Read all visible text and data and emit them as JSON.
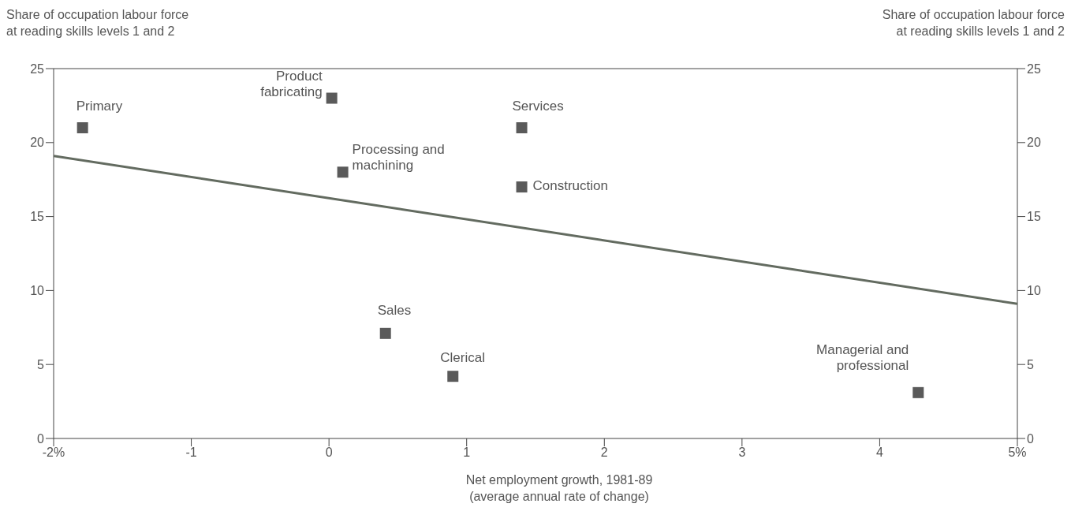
{
  "chart_data": {
    "type": "scatter",
    "ylabel": "Share of occupation labour force at reading skills levels 1 and 2",
    "y2label": "Share of occupation labour force at reading skills levels 1 and 2",
    "xlabel": "Net employment growth, 1981-89 (average annual rate of change)",
    "xlim": [
      -2,
      5
    ],
    "xticks": [
      {
        "value": -2,
        "label": "-2%"
      },
      -1,
      0,
      1,
      2,
      3,
      4,
      {
        "value": 5,
        "label": "5%"
      }
    ],
    "ylim": [
      0,
      25
    ],
    "yticks": [
      0,
      5,
      10,
      15,
      20,
      25
    ],
    "y2lim": [
      0,
      25
    ],
    "y2ticks": [
      0,
      5,
      10,
      15,
      20,
      25
    ],
    "marker": "square",
    "grid": false,
    "legend": false,
    "series": [
      {
        "name": "Primary",
        "color": "#5a5a5a",
        "x": [
          -1.79
        ],
        "values": [
          21
        ]
      },
      {
        "name": "Product fabricating",
        "color": "#5a5a5a",
        "x": [
          0.02
        ],
        "values": [
          23
        ]
      },
      {
        "name": "Processing and machining",
        "color": "#5a5a5a",
        "x": [
          0.1
        ],
        "values": [
          18
        ]
      },
      {
        "name": "Services",
        "color": "#5a5a5a",
        "x": [
          1.4
        ],
        "values": [
          21
        ]
      },
      {
        "name": "Construction",
        "color": "#5a5a5a",
        "x": [
          1.4
        ],
        "values": [
          17
        ]
      },
      {
        "name": "Sales",
        "color": "#5a5a5a",
        "x": [
          0.41
        ],
        "values": [
          7.1
        ]
      },
      {
        "name": "Clerical",
        "color": "#5a5a5a",
        "x": [
          0.9
        ],
        "values": [
          4.2
        ]
      },
      {
        "name": "Managerial and professional",
        "color": "#5a5a5a",
        "x": [
          4.28
        ],
        "values": [
          3.1
        ]
      },
      {
        "type": "line",
        "marker": "none",
        "color": "#636b60",
        "x": [
          -2,
          5
        ],
        "values": [
          19.1,
          9.1
        ]
      }
    ]
  }
}
